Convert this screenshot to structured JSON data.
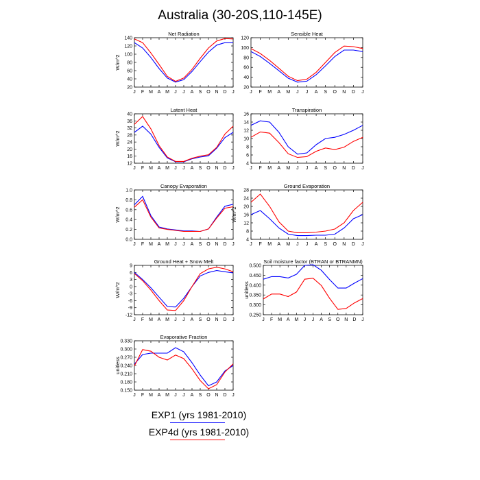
{
  "title": "Australia (30-20S,110-145E)",
  "legend": {
    "entries": [
      {
        "label": "EXP1 (yrs 1981-2010)",
        "color": "#0000ff"
      },
      {
        "label": "EXP4d (yrs 1981-2010)",
        "color": "#ff0000"
      }
    ]
  },
  "chart_data": [
    {
      "type": "line",
      "title": "Net Radiation",
      "ylabel": "W/m^2",
      "categories": [
        "J",
        "F",
        "M",
        "A",
        "M",
        "J",
        "J",
        "A",
        "S",
        "O",
        "N",
        "D",
        "J"
      ],
      "ylim": [
        20,
        140
      ],
      "yticks": [
        20,
        40,
        60,
        80,
        100,
        120,
        140
      ],
      "ytick_labels": [
        "20",
        "40",
        "60",
        "80",
        "100",
        "120",
        "140"
      ],
      "series": [
        {
          "color": "#0000ff",
          "values": [
            128,
            115,
            92,
            65,
            42,
            32,
            38,
            58,
            82,
            105,
            122,
            128,
            128
          ]
        },
        {
          "color": "#ff0000",
          "values": [
            137,
            128,
            103,
            75,
            46,
            34,
            42,
            63,
            90,
            115,
            132,
            138,
            137
          ]
        }
      ]
    },
    {
      "type": "line",
      "title": "Sensible Heat",
      "ylabel": "",
      "categories": [
        "J",
        "F",
        "M",
        "A",
        "M",
        "J",
        "J",
        "A",
        "S",
        "O",
        "N",
        "D",
        "J"
      ],
      "ylim": [
        20,
        120
      ],
      "yticks": [
        20,
        40,
        60,
        80,
        100,
        120
      ],
      "ytick_labels": [
        "20",
        "40",
        "60",
        "80",
        "100",
        "120"
      ],
      "series": [
        {
          "color": "#0000ff",
          "values": [
            92,
            82,
            68,
            53,
            38,
            30,
            32,
            45,
            63,
            82,
            95,
            95,
            92
          ]
        },
        {
          "color": "#ff0000",
          "values": [
            98,
            88,
            74,
            58,
            42,
            33,
            36,
            50,
            70,
            90,
            103,
            102,
            98
          ]
        }
      ]
    },
    {
      "type": "line",
      "title": "Latent Heat",
      "ylabel": "W/m^2",
      "categories": [
        "J",
        "F",
        "M",
        "A",
        "M",
        "J",
        "J",
        "A",
        "S",
        "O",
        "N",
        "D",
        "J"
      ],
      "ylim": [
        12,
        40
      ],
      "yticks": [
        12,
        16,
        20,
        24,
        28,
        32,
        36,
        40
      ],
      "ytick_labels": [
        "12",
        "16",
        "20",
        "24",
        "28",
        "32",
        "36",
        "40"
      ],
      "series": [
        {
          "color": "#0000ff",
          "values": [
            29.5,
            33,
            28.5,
            21,
            15,
            12.8,
            12.8,
            14.5,
            15.5,
            16.2,
            20.5,
            26.5,
            29.5
          ]
        },
        {
          "color": "#ff0000",
          "values": [
            34,
            38.5,
            31.5,
            22,
            15.5,
            13,
            13,
            14.8,
            16,
            16.8,
            21,
            28.5,
            33
          ]
        }
      ]
    },
    {
      "type": "line",
      "title": "Transpiration",
      "ylabel": "",
      "categories": [
        "J",
        "F",
        "M",
        "A",
        "M",
        "J",
        "J",
        "A",
        "S",
        "O",
        "N",
        "D",
        "J"
      ],
      "ylim": [
        4,
        16
      ],
      "yticks": [
        4,
        6,
        8,
        10,
        12,
        14,
        16
      ],
      "ytick_labels": [
        "4",
        "6",
        "8",
        "10",
        "12",
        "14",
        "16"
      ],
      "series": [
        {
          "color": "#0000ff",
          "values": [
            13.2,
            14.3,
            14,
            11.5,
            8,
            6.2,
            6.5,
            8.5,
            10,
            10.3,
            11,
            12,
            13.2
          ]
        },
        {
          "color": "#ff0000",
          "values": [
            10.3,
            11.6,
            11.3,
            9,
            6.3,
            5.4,
            5.6,
            6.9,
            7.7,
            7.3,
            7.9,
            9.3,
            10.3
          ]
        }
      ]
    },
    {
      "type": "line",
      "title": "Canopy Evaporation",
      "ylabel": "W/m^2",
      "categories": [
        "J",
        "F",
        "M",
        "A",
        "M",
        "J",
        "J",
        "A",
        "S",
        "O",
        "N",
        "D",
        "J"
      ],
      "ylim": [
        0,
        1.0
      ],
      "yticks": [
        0,
        0.2,
        0.4,
        0.6,
        0.8,
        1.0
      ],
      "ytick_labels": [
        "0.0",
        "0.2",
        "0.4",
        "0.6",
        "0.8",
        "1.0"
      ],
      "series": [
        {
          "color": "#0000ff",
          "values": [
            0.7,
            0.87,
            0.48,
            0.25,
            0.21,
            0.19,
            0.17,
            0.17,
            0.16,
            0.21,
            0.45,
            0.67,
            0.71
          ]
        },
        {
          "color": "#ff0000",
          "values": [
            0.65,
            0.8,
            0.45,
            0.23,
            0.2,
            0.18,
            0.16,
            0.16,
            0.16,
            0.21,
            0.43,
            0.63,
            0.66
          ]
        }
      ]
    },
    {
      "type": "line",
      "title": "Ground Evaporation",
      "ylabel": "W/m^2",
      "categories": [
        "J",
        "F",
        "M",
        "A",
        "M",
        "J",
        "J",
        "A",
        "S",
        "O",
        "N",
        "D",
        "J"
      ],
      "ylim": [
        4,
        28
      ],
      "yticks": [
        4,
        8,
        12,
        16,
        20,
        24,
        28
      ],
      "ytick_labels": [
        "4",
        "8",
        "12",
        "16",
        "20",
        "24",
        "28"
      ],
      "series": [
        {
          "color": "#0000ff",
          "values": [
            16,
            18,
            14,
            9.5,
            6.5,
            5.8,
            5.8,
            6,
            6,
            6.5,
            9.5,
            14,
            16
          ]
        },
        {
          "color": "#ff0000",
          "values": [
            22,
            26,
            20,
            12.5,
            8,
            7.2,
            7.2,
            7.5,
            8,
            9,
            12,
            18,
            22
          ]
        }
      ]
    },
    {
      "type": "line",
      "title": "Ground Heat + Snow Melt",
      "ylabel": "W/m^2",
      "categories": [
        "J",
        "F",
        "M",
        "A",
        "M",
        "J",
        "J",
        "A",
        "S",
        "O",
        "N",
        "D",
        "J"
      ],
      "ylim": [
        -12,
        9
      ],
      "yticks": [
        -12,
        -9,
        -6,
        -3,
        0,
        3,
        6,
        9
      ],
      "ytick_labels": [
        "-12",
        "-9",
        "-6",
        "-3",
        "0",
        "3",
        "6",
        "9"
      ],
      "series": [
        {
          "color": "#0000ff",
          "values": [
            6,
            3,
            -0.5,
            -4.5,
            -8.5,
            -8.7,
            -5,
            0,
            4.5,
            6,
            6.8,
            6.3,
            5.8
          ]
        },
        {
          "color": "#ff0000",
          "values": [
            5.5,
            2.5,
            -1.5,
            -6,
            -10,
            -10.2,
            -6,
            0,
            5.5,
            7.5,
            8.2,
            7.5,
            6.3
          ]
        }
      ]
    },
    {
      "type": "line",
      "title": "Soil moisture factor (BTRAN or BTRANMN)",
      "ylabel": "unitless",
      "categories": [
        "J",
        "F",
        "M",
        "A",
        "M",
        "J",
        "J",
        "A",
        "S",
        "O",
        "N",
        "D",
        "J"
      ],
      "ylim": [
        0.25,
        0.5
      ],
      "yticks": [
        0.25,
        0.3,
        0.35,
        0.4,
        0.45,
        0.5
      ],
      "ytick_labels": [
        "0.250",
        "0.300",
        "0.350",
        "0.400",
        "0.450",
        "0.500"
      ],
      "series": [
        {
          "color": "#0000ff",
          "values": [
            0.43,
            0.443,
            0.443,
            0.436,
            0.455,
            0.5,
            0.503,
            0.475,
            0.428,
            0.385,
            0.385,
            0.41,
            0.433
          ]
        },
        {
          "color": "#ff0000",
          "values": [
            0.33,
            0.355,
            0.355,
            0.342,
            0.365,
            0.43,
            0.435,
            0.398,
            0.333,
            0.277,
            0.282,
            0.31,
            0.332
          ]
        }
      ]
    },
    {
      "type": "line",
      "title": "Evaporative Fraction",
      "ylabel": "unitless",
      "categories": [
        "J",
        "F",
        "M",
        "A",
        "M",
        "J",
        "J",
        "A",
        "S",
        "O",
        "N",
        "D",
        "J"
      ],
      "ylim": [
        0.15,
        0.33
      ],
      "yticks": [
        0.15,
        0.18,
        0.21,
        0.24,
        0.27,
        0.3,
        0.33
      ],
      "ytick_labels": [
        "0.150",
        "0.180",
        "0.210",
        "0.240",
        "0.270",
        "0.300",
        "0.330"
      ],
      "series": [
        {
          "color": "#0000ff",
          "values": [
            0.245,
            0.28,
            0.285,
            0.285,
            0.285,
            0.305,
            0.29,
            0.25,
            0.205,
            0.166,
            0.18,
            0.22,
            0.24
          ]
        },
        {
          "color": "#ff0000",
          "values": [
            0.238,
            0.298,
            0.292,
            0.27,
            0.26,
            0.278,
            0.265,
            0.228,
            0.185,
            0.155,
            0.17,
            0.216,
            0.246
          ]
        }
      ]
    }
  ]
}
